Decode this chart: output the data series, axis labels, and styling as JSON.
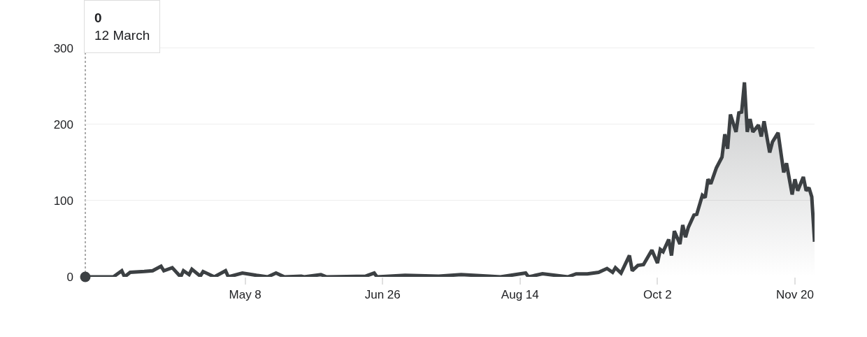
{
  "chart_data": {
    "type": "area",
    "color": "#3c4043",
    "x": [
      "--03-12",
      "--03-22",
      "--03-25",
      "--03-26",
      "--03-28",
      "--04-02",
      "--04-05",
      "--04-08",
      "--04-09",
      "--04-12",
      "--04-15",
      "--04-16",
      "--04-18",
      "--04-19",
      "--04-22",
      "--04-23",
      "--04-27",
      "--05-01",
      "--05-02",
      "--05-07",
      "--05-12",
      "--05-16",
      "--05-19",
      "--05-22",
      "--05-28",
      "--05-29",
      "--06-04",
      "--06-06",
      "--06-20",
      "--06-23",
      "--06-24",
      "--07-04",
      "--07-16",
      "--07-24",
      "--08-03",
      "--08-07",
      "--08-16",
      "--08-17",
      "--08-22",
      "--08-29",
      "--08-31",
      "--09-03",
      "--09-07",
      "--09-11",
      "--09-14",
      "--09-16",
      "--09-17",
      "--09-19",
      "--09-22",
      "--09-23",
      "--09-25",
      "--09-27",
      "--09-30",
      "--10-02",
      "--10-03",
      "--10-04",
      "--10-06",
      "--10-07",
      "--10-08",
      "--10-10",
      "--10-11",
      "--10-12",
      "--10-13",
      "--10-15",
      "--10-16",
      "--10-18",
      "--10-19",
      "--10-20",
      "--10-21",
      "--10-23",
      "--10-25",
      "--10-26",
      "--10-27",
      "--10-28",
      "--10-30",
      "--10-31",
      "--11-01",
      "--11-02",
      "--11-03",
      "--11-04",
      "--11-05",
      "--11-07",
      "--11-08",
      "--11-09",
      "--11-11",
      "--11-12",
      "--11-14",
      "--11-16",
      "--11-17",
      "--11-19",
      "--11-20",
      "--11-21",
      "--11-23",
      "--11-24",
      "--11-25",
      "--11-26",
      "--11-27"
    ],
    "values": [
      0,
      0,
      8,
      0,
      6,
      7,
      8,
      14,
      8,
      12,
      0,
      8,
      3,
      10,
      1,
      7,
      0,
      8,
      0,
      5,
      2,
      0,
      5,
      0,
      1,
      0,
      3,
      0,
      1,
      5,
      0,
      2,
      1,
      3,
      1,
      0,
      5,
      0,
      4,
      1,
      0,
      4,
      4,
      6,
      11,
      6,
      12,
      5,
      28,
      8,
      15,
      16,
      35,
      18,
      36,
      33,
      49,
      28,
      60,
      43,
      68,
      52,
      65,
      81,
      82,
      107,
      104,
      128,
      122,
      143,
      157,
      187,
      168,
      213,
      190,
      215,
      216,
      255,
      190,
      207,
      190,
      199,
      184,
      204,
      163,
      177,
      189,
      137,
      149,
      108,
      128,
      113,
      131,
      113,
      117,
      105,
      46
    ],
    "xlim": [
      "--03-12",
      "--11-27"
    ],
    "xticks": [
      {
        "value": "--05-08",
        "label": "May 8"
      },
      {
        "value": "--06-26",
        "label": "Jun 26"
      },
      {
        "value": "--08-14",
        "label": "Aug 14"
      },
      {
        "value": "--10-02",
        "label": "Oct 2"
      },
      {
        "value": "--11-20",
        "label": "Nov 20"
      }
    ],
    "ylim": [
      0,
      330
    ],
    "yticks": [
      0,
      100,
      200,
      300
    ],
    "grid": "y",
    "marker": "none",
    "line_style": "solid",
    "annotations": [
      "0\n12 March"
    ]
  }
}
